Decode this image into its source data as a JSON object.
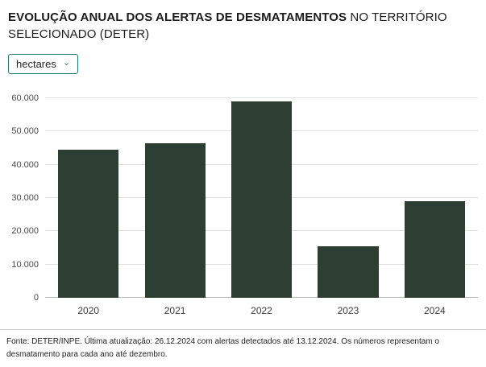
{
  "header": {
    "title_bold": "EVOLUÇÃO ANUAL DOS ALERTAS DE DESMATAMENTOS",
    "title_rest": " NO TERRITÓRIO SELECIONADO (DETER)"
  },
  "unit_selector": {
    "value": "hectares"
  },
  "icons": {
    "chevron_down": "⌄"
  },
  "chart_data": {
    "type": "bar",
    "title": "Evolução anual dos alertas de desmatamentos no território selecionado (DETER)",
    "categories": [
      "2020",
      "2021",
      "2022",
      "2023",
      "2024"
    ],
    "values": [
      44500,
      46500,
      59000,
      15500,
      29000
    ],
    "xlabel": "",
    "ylabel": "hectares",
    "ylim": [
      0,
      60000
    ],
    "ytick_step": 10000,
    "ytick_labels": [
      "0",
      "10.000",
      "20.000",
      "30.000",
      "40.000",
      "50.000",
      "60.000"
    ],
    "grid": true,
    "legend": "none",
    "bar_color": "#2d3e33"
  },
  "colors": {
    "accent": "#1e7d6e",
    "bar": "#2d3e33",
    "gridline": "#e2e2e2"
  },
  "footer": {
    "source": "Fonte: DETER/INPE. Última atualização: 26.12.2024 com alertas detectados até 13.12.2024. Os números representam o desmatamento para cada ano até dezembro."
  }
}
